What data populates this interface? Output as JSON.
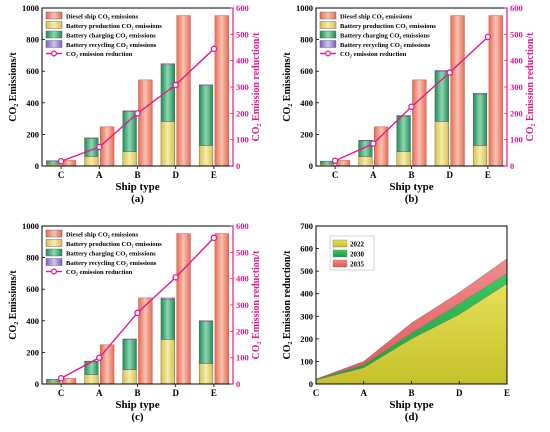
{
  "figure": {
    "shared": {
      "categories": [
        "C",
        "A",
        "B",
        "D",
        "E"
      ],
      "xlabel": "Ship type",
      "ylabel_left": "CO₂ Emissions/t",
      "ylabel_right": "CO₂ Emission reduction/t",
      "legend": {
        "diesel": "Diesel ship CO₂ emissions",
        "production": "Battery production CO₂ emissions",
        "charging": "Battery charging CO₂ emissions",
        "recycling": "Battery recycling CO₂ emissions",
        "reduction": "CO₂ emission reduction"
      },
      "colors": {
        "diesel": "#e8826a",
        "production": "#e6d36a",
        "charging": "#3aa673",
        "recycling": "#9a78d8",
        "reduction": "#e5188c",
        "area2022": "#d2cf3c",
        "area2030": "#27b34a",
        "area2035": "#ec6f6f"
      }
    }
  },
  "chart_data": [
    {
      "panel_label": "(a)",
      "type": "bar",
      "categories": [
        "C",
        "A",
        "B",
        "D",
        "E"
      ],
      "xlabel": "Ship type",
      "ylabel": "CO₂ Emissions/t",
      "ylabel_right": "CO₂ Emission reduction/t",
      "ylim": [
        0,
        1000
      ],
      "ylim_right": [
        0,
        600
      ],
      "yticks": [
        0,
        200,
        400,
        600,
        800,
        1000
      ],
      "yticks_right": [
        0,
        100,
        200,
        300,
        400,
        500,
        600
      ],
      "series": [
        {
          "name": "Diesel ship CO₂ emissions",
          "values": [
            35,
            248,
            545,
            952,
            952
          ]
        },
        {
          "name": "Battery production CO₂ emissions",
          "values": [
            12,
            60,
            90,
            282,
            130
          ]
        },
        {
          "name": "Battery charging CO₂ emissions",
          "values": [
            20,
            115,
            255,
            358,
            378
          ]
        },
        {
          "name": "Battery recycling CO₂ emissions",
          "values": [
            1,
            3,
            5,
            8,
            6
          ]
        },
        {
          "name": "CO₂ emission reduction",
          "type": "line",
          "axis": "right",
          "values": [
            18,
            72,
            200,
            308,
            445
          ]
        }
      ]
    },
    {
      "panel_label": "(b)",
      "type": "bar",
      "categories": [
        "C",
        "A",
        "B",
        "D",
        "E"
      ],
      "xlabel": "Ship type",
      "ylabel": "CO₂ Emissions/t",
      "ylabel_right": "CO₂ Emission reduction/t",
      "ylim": [
        0,
        1000
      ],
      "ylim_right": [
        0,
        600
      ],
      "yticks": [
        0,
        200,
        400,
        600,
        800,
        1000
      ],
      "yticks_right": [
        0,
        100,
        200,
        300,
        400,
        500,
        600
      ],
      "series": [
        {
          "name": "Diesel ship CO₂ emissions",
          "values": [
            35,
            248,
            545,
            952,
            952
          ]
        },
        {
          "name": "Battery production CO₂ emissions",
          "values": [
            12,
            60,
            90,
            282,
            130
          ]
        },
        {
          "name": "Battery charging CO₂ emissions",
          "values": [
            18,
            100,
            225,
            315,
            325
          ]
        },
        {
          "name": "Battery recycling CO₂ emissions",
          "values": [
            1,
            3,
            5,
            8,
            6
          ]
        },
        {
          "name": "CO₂ emission reduction",
          "type": "line",
          "axis": "right",
          "values": [
            20,
            85,
            225,
            355,
            490
          ]
        }
      ]
    },
    {
      "panel_label": "(c)",
      "type": "bar",
      "categories": [
        "C",
        "A",
        "B",
        "D",
        "E"
      ],
      "xlabel": "Ship type",
      "ylabel": "CO₂ Emissions/t",
      "ylabel_right": "CO₂ Emission reduction/t",
      "ylim": [
        0,
        1000
      ],
      "ylim_right": [
        0,
        600
      ],
      "yticks": [
        0,
        200,
        400,
        600,
        800,
        1000
      ],
      "yticks_right": [
        0,
        100,
        200,
        300,
        400,
        500,
        600
      ],
      "series": [
        {
          "name": "Diesel ship CO₂ emissions",
          "values": [
            35,
            248,
            545,
            952,
            952
          ]
        },
        {
          "name": "Battery production CO₂ emissions",
          "values": [
            12,
            60,
            90,
            282,
            130
          ]
        },
        {
          "name": "Battery charging CO₂ emissions",
          "values": [
            16,
            82,
            190,
            255,
            265
          ]
        },
        {
          "name": "Battery recycling CO₂ emissions",
          "values": [
            1,
            3,
            5,
            8,
            6
          ]
        },
        {
          "name": "CO₂ emission reduction",
          "type": "line",
          "axis": "right",
          "values": [
            22,
            100,
            270,
            405,
            555
          ]
        }
      ]
    },
    {
      "panel_label": "(d)",
      "type": "area",
      "x": [
        "C",
        "A",
        "B",
        "D",
        "E"
      ],
      "xlabel": "Ship type",
      "ylabel": "CO₂ Emission reduction/t",
      "ylim": [
        0,
        700
      ],
      "yticks": [
        0,
        100,
        200,
        300,
        400,
        500,
        600,
        700
      ],
      "series": [
        {
          "name": "2022",
          "values": [
            18,
            72,
            200,
            308,
            445
          ]
        },
        {
          "name": "2030",
          "values": [
            20,
            85,
            225,
            355,
            490
          ]
        },
        {
          "name": "2035",
          "values": [
            22,
            100,
            270,
            405,
            555
          ]
        }
      ]
    }
  ]
}
